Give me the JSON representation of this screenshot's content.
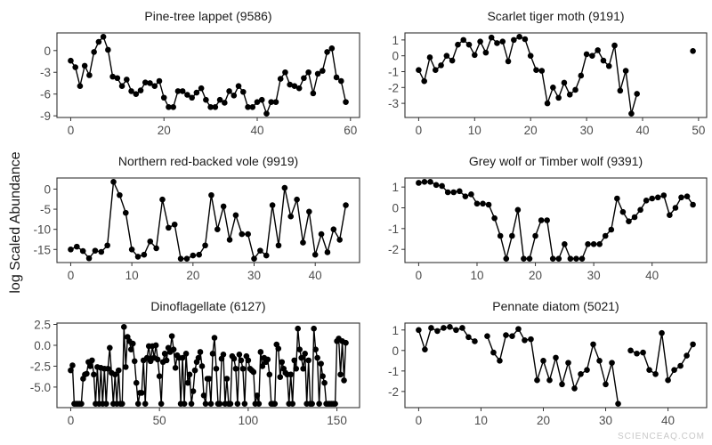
{
  "ylabel": "log Scaled Abundance",
  "watermark": "SCIENCEAQ.COM",
  "colors": {
    "series": "#000000",
    "frame": "#333333",
    "tick_text": "#4d4d4d"
  },
  "chart_data": [
    {
      "type": "line",
      "title": "Pine-tree lappet (9586)",
      "grid": false,
      "x_start": 0,
      "y": [
        -1.4,
        -2.3,
        -4.9,
        -2.1,
        -3.4,
        -0.2,
        1.2,
        1.9,
        0.1,
        -3.6,
        -3.8,
        -4.9,
        -4,
        -5.6,
        -6,
        -5.5,
        -4.4,
        -4.5,
        -4.9,
        -4.2,
        -6.5,
        -7.8,
        -7.8,
        -5.6,
        -5.6,
        -6.1,
        -6.5,
        -5.8,
        -5.2,
        -6.8,
        -7.8,
        -7.8,
        -6.8,
        -7.2,
        -5.6,
        -6.2,
        -4.9,
        -5.7,
        -7.8,
        -7.8,
        -7.1,
        -6.8,
        -8.7,
        -7.1,
        -7.1,
        -3.9,
        -3,
        -4.7,
        -4.9,
        -5.2,
        -3.8,
        -3,
        -5.9,
        -3.2,
        -2.8,
        -0.2,
        0.3,
        -3.7,
        -4.2,
        -7.1
      ],
      "xticks": [
        0,
        20,
        40,
        60
      ],
      "yticks": [
        0,
        -3,
        -6,
        -9
      ],
      "ytick_labels": [
        "0",
        "-3",
        "-6",
        "-9"
      ]
    },
    {
      "type": "line",
      "title": "Scarlet tiger moth (9191)",
      "grid": false,
      "x_start": 0,
      "y": [
        -0.9,
        -1.6,
        -0.1,
        -0.9,
        -0.6,
        0,
        -0.3,
        0.7,
        1,
        0.7,
        0.05,
        0.9,
        0.2,
        1.15,
        0.8,
        0.9,
        -0.35,
        1,
        1.2,
        1.05,
        0,
        -0.9,
        -0.95,
        -3,
        -2,
        -2.65,
        -1.7,
        -2.45,
        -2.15,
        -1.25,
        0.1,
        0,
        0.35,
        -0.3,
        -0.65,
        0.65,
        -2.2,
        -0.95,
        -3.65,
        -2.4,
        null,
        null,
        null,
        null,
        null,
        null,
        null,
        null,
        null,
        0.3
      ],
      "xticks": [
        0,
        10,
        20,
        30,
        40,
        50
      ],
      "yticks": [
        1,
        0,
        -1,
        -2,
        -3
      ],
      "ytick_labels": [
        "1",
        "0",
        "-1",
        "-2",
        "-3"
      ]
    },
    {
      "type": "line",
      "title": "Northern red-backed vole (9919)",
      "grid": false,
      "x_start": 0,
      "y": [
        -15,
        -14.3,
        -15.4,
        -17.2,
        -15.3,
        -15.6,
        -14,
        1.8,
        -1.5,
        -5.9,
        -15,
        -16.8,
        -16.3,
        -13,
        -14.7,
        -2.6,
        -9.6,
        -8.8,
        -17.3,
        -17.3,
        -16.5,
        -16.3,
        -14,
        -1.5,
        -10,
        -4.3,
        -12.6,
        -6.5,
        -11.2,
        -11.2,
        -17.3,
        -15.3,
        -16.5,
        -4,
        -14,
        0.3,
        -6.8,
        -2.6,
        -13.3,
        -5.6,
        -16.3,
        -11.2,
        -15.7,
        -10,
        -12.6,
        -4
      ],
      "xticks": [
        0,
        10,
        20,
        30,
        40
      ],
      "yticks": [
        0,
        -5,
        -10,
        -15
      ],
      "ytick_labels": [
        "0",
        "-5",
        "-10",
        "-15"
      ]
    },
    {
      "type": "line",
      "title": "Grey wolf or Timber wolf (9391)",
      "grid": false,
      "x_start": 0,
      "y": [
        1.2,
        1.25,
        1.25,
        1.1,
        1.05,
        0.75,
        0.75,
        0.8,
        0.55,
        0.65,
        0.2,
        0.2,
        0.15,
        -0.5,
        -1.35,
        -2.45,
        -1.35,
        -0.1,
        -2.45,
        -2.45,
        -1.35,
        -0.6,
        -0.6,
        -2.45,
        -2.45,
        -1.75,
        -2.45,
        -2.45,
        -2.45,
        -1.75,
        -1.75,
        -1.75,
        -1.35,
        -1.05,
        0.45,
        -0.2,
        -0.65,
        -0.45,
        -0.1,
        0.35,
        0.45,
        0.5,
        0.6,
        -0.35,
        0,
        0.5,
        0.55,
        0.15
      ],
      "xticks": [
        0,
        10,
        20,
        30,
        40
      ],
      "yticks": [
        1,
        0,
        -1,
        -2
      ],
      "ytick_labels": [
        "1",
        "0",
        "-1",
        "-2"
      ]
    },
    {
      "type": "line",
      "title": "Dinoflagellate (6127)",
      "grid": false,
      "x_start": 0,
      "y": [
        -3,
        -2.4,
        -7,
        -7,
        -7,
        -7,
        -7,
        -4,
        -3.5,
        -3.4,
        -2,
        -2.5,
        -1.8,
        -3.5,
        -7,
        -2.6,
        -7,
        -2.7,
        -7,
        -2.8,
        -7,
        -2.8,
        -0.3,
        -3.3,
        -7,
        -3.5,
        -7,
        -3,
        -7,
        -7,
        2.2,
        -2.6,
        1,
        0.5,
        -0.5,
        0.2,
        -1.9,
        -4.5,
        -7,
        -5.7,
        -5.7,
        -1.8,
        -7,
        -1.5,
        -0.1,
        -1.9,
        -0.1,
        -1.5,
        0,
        -1.7,
        -3.7,
        -7,
        -2,
        -1,
        -1.8,
        -0.3,
        -0.8,
        1.1,
        -0.5,
        -2.7,
        -1.2,
        -1.5,
        -7,
        -1.5,
        -7,
        -1,
        -4.5,
        -3.5,
        -7,
        -5.5,
        -3,
        -2,
        -1.5,
        -0.8,
        -2.5,
        -6,
        -7,
        -4,
        -4,
        -7,
        -1,
        0.9,
        -2.8,
        -7,
        -7,
        -1.6,
        -1.1,
        -7,
        -4,
        -7,
        -7,
        -1.3,
        -1.6,
        -2.8,
        -7,
        -1.1,
        -1.8,
        -2.8,
        -7,
        -1.3,
        -1.8,
        -2.8,
        -3,
        -3.2,
        -7,
        -6,
        -7,
        -0.8,
        -2.5,
        -1.5,
        -2,
        -1.7,
        -3.5,
        -7,
        -7,
        -7,
        0.1,
        -0.4,
        -3.8,
        -2,
        -2.8,
        -3.3,
        -3.5,
        -7,
        -3.5,
        -7,
        -1.8,
        -2.8,
        2,
        -0.5,
        -1.5,
        -2.8,
        -1,
        -7,
        -1.8,
        -7,
        -7,
        2,
        -0.5,
        -1.5,
        -7,
        -2.2,
        -3.7,
        -4.5,
        -7,
        -7,
        -7,
        -7,
        -7,
        -7,
        0.5,
        0.8,
        -3.5,
        0.5,
        -4.2,
        0.3
      ],
      "xticks": [
        0,
        50,
        100,
        150
      ],
      "yticks": [
        2.5,
        0,
        -2.5,
        -5
      ],
      "ytick_labels": [
        "2.5",
        "0.0",
        "-2.5",
        "-5.0"
      ]
    },
    {
      "type": "line",
      "title": "Pennate diatom (5021)",
      "grid": false,
      "x_start": 0,
      "y": [
        1,
        0.05,
        1.1,
        0.95,
        1.1,
        1.15,
        1,
        1.1,
        0.65,
        0.45,
        null,
        0.7,
        -0.1,
        -0.5,
        0.75,
        0.7,
        1.05,
        0.5,
        0.55,
        -1.45,
        -0.5,
        -1.45,
        -0.35,
        -1.65,
        -0.6,
        -1.85,
        -1.15,
        -0.95,
        0.3,
        -0.5,
        -1.65,
        -0.6,
        -2.6,
        null,
        0,
        -0.15,
        -0.1,
        -0.95,
        -1.15,
        0.85,
        -1.45,
        -0.95,
        -0.75,
        -0.25,
        0.3
      ],
      "xticks": [
        0,
        10,
        20,
        30,
        40
      ],
      "yticks": [
        1,
        0,
        -1,
        -2
      ],
      "ytick_labels": [
        "1",
        "0",
        "-1",
        "-2"
      ]
    }
  ]
}
